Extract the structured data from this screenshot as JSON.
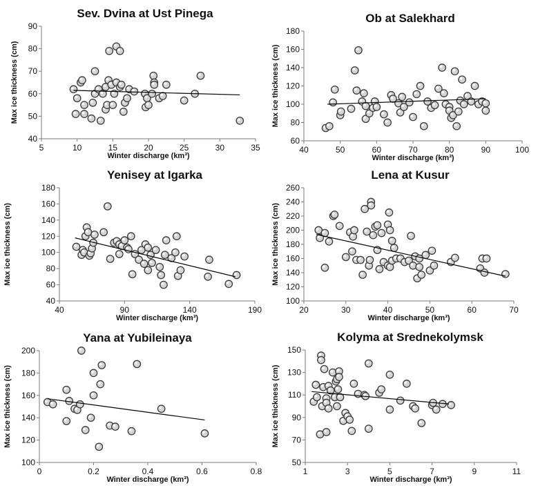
{
  "chart_data": [
    {
      "type": "scatter",
      "title": "Sev. Dvina at Ust Pinega",
      "xlabel": "Winter discharge (km³)",
      "ylabel": "Max ice thickness (cm)",
      "xlim": [
        5,
        35
      ],
      "ylim": [
        40,
        90
      ],
      "xticks": [
        5,
        10,
        15,
        20,
        25,
        30,
        35
      ],
      "yticks": [
        40,
        50,
        60,
        70,
        80,
        90
      ],
      "trend": [
        [
          9.5,
          61.5
        ],
        [
          32.8,
          59.5
        ]
      ],
      "points": [
        [
          9.5,
          62
        ],
        [
          9.8,
          51
        ],
        [
          10,
          58
        ],
        [
          10.5,
          65
        ],
        [
          10.7,
          66
        ],
        [
          11,
          51
        ],
        [
          11,
          55
        ],
        [
          12,
          49
        ],
        [
          12.2,
          56
        ],
        [
          12.5,
          70
        ],
        [
          12.5,
          60
        ],
        [
          13,
          62
        ],
        [
          13.3,
          48
        ],
        [
          13.6,
          60
        ],
        [
          14,
          53
        ],
        [
          14,
          63
        ],
        [
          14.2,
          55
        ],
        [
          14.4,
          66
        ],
        [
          14.5,
          79
        ],
        [
          14.8,
          64
        ],
        [
          15,
          55
        ],
        [
          15.2,
          60
        ],
        [
          15.5,
          81
        ],
        [
          15.5,
          65
        ],
        [
          16,
          79
        ],
        [
          16,
          63
        ],
        [
          16.2,
          64
        ],
        [
          16.5,
          52
        ],
        [
          16.7,
          56
        ],
        [
          17,
          58
        ],
        [
          17.3,
          62
        ],
        [
          18,
          61
        ],
        [
          19.5,
          60
        ],
        [
          19.6,
          54
        ],
        [
          19.8,
          58
        ],
        [
          20,
          55
        ],
        [
          20.7,
          68
        ],
        [
          20.8,
          65
        ],
        [
          20.8,
          64
        ],
        [
          20.5,
          60
        ],
        [
          21.5,
          58
        ],
        [
          22,
          59
        ],
        [
          22.5,
          64
        ],
        [
          25,
          57
        ],
        [
          26.5,
          60
        ],
        [
          27.3,
          68
        ],
        [
          32.8,
          48
        ]
      ]
    },
    {
      "type": "scatter",
      "title": "Ob at Salekhard",
      "xlabel": "Winter discharge (km³)",
      "ylabel": "Max ice thickness (cm)",
      "xlim": [
        40,
        100
      ],
      "ylim": [
        60,
        180
      ],
      "xticks": [
        40,
        50,
        60,
        70,
        80,
        90,
        100
      ],
      "yticks": [
        60,
        80,
        100,
        120,
        140,
        160,
        180
      ],
      "trend": [
        [
          46.5,
          100
        ],
        [
          90,
          106
        ]
      ],
      "points": [
        [
          46,
          74
        ],
        [
          47,
          76
        ],
        [
          48,
          102
        ],
        [
          48.5,
          116
        ],
        [
          50,
          88
        ],
        [
          50.2,
          92
        ],
        [
          53,
          95
        ],
        [
          54,
          137
        ],
        [
          54.5,
          115
        ],
        [
          55,
          159
        ],
        [
          56,
          103
        ],
        [
          56.5,
          112
        ],
        [
          57,
          98
        ],
        [
          57,
          84
        ],
        [
          58,
          90
        ],
        [
          59,
          96
        ],
        [
          59.5,
          103
        ],
        [
          60,
          97
        ],
        [
          62,
          89
        ],
        [
          63,
          80
        ],
        [
          64,
          110
        ],
        [
          64.5,
          106
        ],
        [
          66,
          101
        ],
        [
          66.5,
          91
        ],
        [
          67,
          108
        ],
        [
          67.5,
          97
        ],
        [
          69,
          102
        ],
        [
          70,
          86
        ],
        [
          71,
          111
        ],
        [
          72,
          120
        ],
        [
          73,
          76
        ],
        [
          74,
          103
        ],
        [
          75,
          96
        ],
        [
          76,
          99
        ],
        [
          77,
          117
        ],
        [
          78,
          140
        ],
        [
          78.5,
          112
        ],
        [
          79,
          100
        ],
        [
          80,
          97
        ],
        [
          80,
          93
        ],
        [
          80.5,
          85
        ],
        [
          81,
          88
        ],
        [
          81.5,
          136
        ],
        [
          82,
          76
        ],
        [
          82.5,
          92
        ],
        [
          83,
          104
        ],
        [
          83.5,
          127
        ],
        [
          84,
          100
        ],
        [
          85,
          109
        ],
        [
          86,
          103
        ],
        [
          87,
          120
        ],
        [
          88,
          100
        ],
        [
          89,
          103
        ],
        [
          90,
          101
        ],
        [
          90,
          93
        ]
      ]
    },
    {
      "type": "scatter",
      "title": "Yenisey at Igarka",
      "xlabel": "Winter discharge (km³)",
      "ylabel": "Max ice thickness (cm)",
      "xlim": [
        40,
        190
      ],
      "ylim": [
        40,
        180
      ],
      "xticks": [
        40,
        90,
        140,
        190
      ],
      "yticks": [
        40,
        60,
        80,
        100,
        120,
        140,
        160,
        180
      ],
      "trend": [
        [
          52,
          118
        ],
        [
          175,
          70
        ]
      ],
      "points": [
        [
          53,
          107
        ],
        [
          57,
          97
        ],
        [
          58,
          103
        ],
        [
          59,
          100
        ],
        [
          60,
          120
        ],
        [
          61,
          131
        ],
        [
          62,
          125
        ],
        [
          63,
          96
        ],
        [
          64,
          99
        ],
        [
          65,
          105
        ],
        [
          66,
          112
        ],
        [
          67,
          122
        ],
        [
          74,
          125
        ],
        [
          77,
          157
        ],
        [
          79,
          92
        ],
        [
          82,
          112
        ],
        [
          84,
          114
        ],
        [
          86,
          98
        ],
        [
          86,
          110
        ],
        [
          88,
          108
        ],
        [
          90,
          115
        ],
        [
          92,
          106
        ],
        [
          93,
          104
        ],
        [
          95,
          120
        ],
        [
          96,
          73
        ],
        [
          98,
          98
        ],
        [
          101,
          91
        ],
        [
          103,
          103
        ],
        [
          105,
          86
        ],
        [
          106,
          110
        ],
        [
          108,
          78
        ],
        [
          108,
          106
        ],
        [
          110,
          97
        ],
        [
          111,
          87
        ],
        [
          114,
          103
        ],
        [
          117,
          82
        ],
        [
          118,
          72
        ],
        [
          120,
          60
        ],
        [
          121,
          97
        ],
        [
          122,
          115
        ],
        [
          126,
          93
        ],
        [
          129,
          100
        ],
        [
          130,
          120
        ],
        [
          131,
          71
        ],
        [
          133,
          78
        ],
        [
          136,
          95
        ],
        [
          154,
          70
        ],
        [
          155,
          91
        ],
        [
          170,
          61
        ],
        [
          176,
          72
        ]
      ]
    },
    {
      "type": "scatter",
      "title": "Lena at Kusur",
      "xlabel": "Winter discharge (km³)",
      "ylabel": "Max ice thickness (cm)",
      "xlim": [
        20,
        70
      ],
      "ylim": [
        100,
        260
      ],
      "xticks": [
        20,
        30,
        40,
        50,
        60,
        70
      ],
      "yticks": [
        100,
        120,
        140,
        160,
        180,
        200,
        220,
        240,
        260
      ],
      "trend": [
        [
          23,
          194
        ],
        [
          68,
          135
        ]
      ],
      "points": [
        [
          23.5,
          200
        ],
        [
          23.8,
          189
        ],
        [
          25,
          147
        ],
        [
          25,
          196
        ],
        [
          26,
          184
        ],
        [
          27,
          220
        ],
        [
          27.3,
          222
        ],
        [
          28.5,
          206
        ],
        [
          30,
          162
        ],
        [
          31,
          197
        ],
        [
          31.5,
          170
        ],
        [
          31.7,
          191
        ],
        [
          32,
          200
        ],
        [
          32.5,
          158
        ],
        [
          33.5,
          158
        ],
        [
          34,
          137
        ],
        [
          34.5,
          230
        ],
        [
          35,
          198
        ],
        [
          35.5,
          150
        ],
        [
          35.7,
          158
        ],
        [
          36,
          240
        ],
        [
          36,
          235
        ],
        [
          36.5,
          193
        ],
        [
          37,
          205
        ],
        [
          37.5,
          207
        ],
        [
          37.5,
          172
        ],
        [
          38,
          145
        ],
        [
          38.5,
          196
        ],
        [
          39,
          155
        ],
        [
          40,
          150
        ],
        [
          40,
          208
        ],
        [
          40.3,
          225
        ],
        [
          40.5,
          148
        ],
        [
          40.5,
          200
        ],
        [
          41,
          185
        ],
        [
          41,
          157
        ],
        [
          41.5,
          175
        ],
        [
          42,
          160
        ],
        [
          43,
          160
        ],
        [
          44,
          155
        ],
        [
          45,
          157
        ],
        [
          45.5,
          192
        ],
        [
          46,
          150
        ],
        [
          46.5,
          163
        ],
        [
          47,
          132
        ],
        [
          47.5,
          148
        ],
        [
          47.5,
          160
        ],
        [
          48,
          137
        ],
        [
          49,
          165
        ],
        [
          50,
          143
        ],
        [
          50.5,
          171
        ],
        [
          51,
          150
        ],
        [
          55,
          155
        ],
        [
          56,
          161
        ],
        [
          62,
          146
        ],
        [
          62.5,
          160
        ],
        [
          63,
          140
        ],
        [
          63.5,
          160
        ],
        [
          68,
          138
        ]
      ]
    },
    {
      "type": "scatter",
      "title": "Yana at Yubileinaya",
      "xlabel": "Winter discharge (km³)",
      "ylabel": "Max ice thickness (cm)",
      "xlim": [
        0,
        0.8
      ],
      "ylim": [
        100,
        200
      ],
      "xticks": [
        0,
        0.2,
        0.4,
        0.6,
        0.8
      ],
      "yticks": [
        100,
        120,
        140,
        160,
        180,
        200
      ],
      "trend": [
        [
          0.03,
          157
        ],
        [
          0.61,
          138
        ]
      ],
      "points": [
        [
          0.03,
          154
        ],
        [
          0.05,
          152
        ],
        [
          0.1,
          165
        ],
        [
          0.1,
          137
        ],
        [
          0.11,
          155
        ],
        [
          0.13,
          148
        ],
        [
          0.14,
          147
        ],
        [
          0.15,
          152
        ],
        [
          0.155,
          200
        ],
        [
          0.17,
          129
        ],
        [
          0.19,
          140
        ],
        [
          0.2,
          160
        ],
        [
          0.2,
          180
        ],
        [
          0.22,
          114
        ],
        [
          0.225,
          170
        ],
        [
          0.23,
          187
        ],
        [
          0.26,
          133
        ],
        [
          0.28,
          132
        ],
        [
          0.34,
          128
        ],
        [
          0.36,
          188
        ],
        [
          0.45,
          148
        ],
        [
          0.61,
          126
        ]
      ]
    },
    {
      "type": "scatter",
      "title": "Kolyma at Srednekolymsk",
      "xlabel": "Winter discharge (km³)",
      "ylabel": "Max ice thickness (cm)",
      "xlim": [
        1,
        11
      ],
      "ylim": [
        50,
        150
      ],
      "xticks": [
        1,
        3,
        5,
        7,
        9,
        11
      ],
      "yticks": [
        50,
        70,
        90,
        110,
        130,
        150
      ],
      "trend": [
        [
          1.3,
          113
        ],
        [
          7.8,
          102
        ]
      ],
      "points": [
        [
          1.4,
          104
        ],
        [
          1.5,
          119
        ],
        [
          1.55,
          108
        ],
        [
          1.7,
          75
        ],
        [
          1.75,
          145
        ],
        [
          1.75,
          141
        ],
        [
          1.8,
          100
        ],
        [
          1.85,
          117
        ],
        [
          1.9,
          133
        ],
        [
          2,
          107
        ],
        [
          2,
          103
        ],
        [
          2,
          77
        ],
        [
          2.1,
          98
        ],
        [
          2.1,
          118
        ],
        [
          2.2,
          114
        ],
        [
          2.3,
          130
        ],
        [
          2.4,
          108
        ],
        [
          2.45,
          122
        ],
        [
          2.5,
          100
        ],
        [
          2.5,
          124
        ],
        [
          2.55,
          115
        ],
        [
          2.6,
          131
        ],
        [
          2.6,
          126
        ],
        [
          2.65,
          108
        ],
        [
          2.8,
          87
        ],
        [
          2.9,
          94
        ],
        [
          3,
          91
        ],
        [
          3.1,
          88
        ],
        [
          3.2,
          78
        ],
        [
          3.3,
          120
        ],
        [
          3.5,
          111
        ],
        [
          3.8,
          110
        ],
        [
          3.85,
          109
        ],
        [
          4,
          138
        ],
        [
          4,
          80
        ],
        [
          4.5,
          112
        ],
        [
          4.6,
          115
        ],
        [
          5,
          128
        ],
        [
          5,
          97
        ],
        [
          5.5,
          105
        ],
        [
          5.8,
          120
        ],
        [
          6.1,
          100
        ],
        [
          6.2,
          98
        ],
        [
          6.5,
          85
        ],
        [
          7,
          101
        ],
        [
          7.05,
          103
        ],
        [
          7.2,
          97
        ],
        [
          7.5,
          102
        ],
        [
          7.9,
          101
        ]
      ]
    }
  ]
}
